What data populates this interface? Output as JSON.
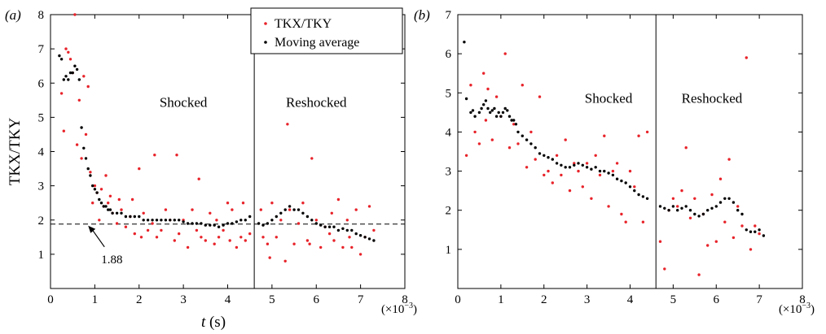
{
  "chart_data": [
    {
      "panel_label": "(a)",
      "type": "scatter",
      "xlabel": "t (s)",
      "xlabel_parts": {
        "var": "t",
        "unit": "(s)"
      },
      "ylabel": "TKX/TKY",
      "x_multiplier": "(×10−3)",
      "x_multiplier_parts": {
        "prefix": "(×10",
        "exp": "−3",
        "suffix": ")"
      },
      "xlim": [
        0,
        8
      ],
      "ylim": [
        0,
        8
      ],
      "xticks": [
        0,
        1,
        2,
        3,
        4,
        5,
        6,
        7,
        8
      ],
      "yticks": [
        1,
        2,
        3,
        4,
        5,
        6,
        7,
        8
      ],
      "legend": {
        "position": "top-right",
        "entries": [
          "TKX/TKY",
          "Moving average"
        ]
      },
      "reference_line": {
        "y": 1.88,
        "style": "dashed",
        "annotation": "1.88",
        "arrow_target_x": 0.85
      },
      "divider_x": 4.6,
      "region_labels": [
        {
          "text": "Shocked",
          "x": 3.0,
          "y": 5.3
        },
        {
          "text": "Reshocked",
          "x": 6.0,
          "y": 5.3
        }
      ],
      "series": [
        {
          "name": "TKX/TKY",
          "color": "#e8232a",
          "x": [
            0.25,
            0.3,
            0.35,
            0.4,
            0.45,
            0.5,
            0.55,
            0.6,
            0.65,
            0.7,
            0.75,
            0.8,
            0.85,
            0.9,
            0.95,
            1.0,
            1.05,
            1.1,
            1.15,
            1.2,
            1.25,
            1.3,
            1.35,
            1.4,
            1.5,
            1.55,
            1.6,
            1.7,
            1.8,
            1.85,
            1.9,
            2.0,
            2.05,
            2.1,
            2.2,
            2.3,
            2.35,
            2.4,
            2.5,
            2.6,
            2.7,
            2.8,
            2.85,
            2.9,
            3.0,
            3.1,
            3.2,
            3.3,
            3.35,
            3.4,
            3.5,
            3.6,
            3.7,
            3.75,
            3.8,
            3.9,
            4.0,
            4.05,
            4.1,
            4.2,
            4.3,
            4.35,
            4.4,
            4.5,
            4.75,
            4.8,
            4.9,
            4.95,
            5.0,
            5.1,
            5.2,
            5.3,
            5.35,
            5.4,
            5.5,
            5.6,
            5.7,
            5.8,
            5.85,
            5.9,
            6.0,
            6.1,
            6.2,
            6.3,
            6.35,
            6.4,
            6.5,
            6.6,
            6.7,
            6.75,
            6.8,
            6.9,
            7.0,
            7.1,
            7.2,
            7.3
          ],
          "y": [
            5.7,
            4.6,
            7.0,
            6.9,
            6.7,
            6.3,
            8.0,
            4.2,
            5.5,
            3.8,
            6.2,
            4.5,
            5.9,
            3.4,
            2.5,
            3.0,
            2.8,
            2.0,
            2.9,
            2.4,
            3.3,
            2.5,
            2.7,
            2.2,
            1.9,
            2.6,
            2.3,
            1.8,
            2.1,
            2.6,
            1.6,
            3.5,
            1.5,
            2.2,
            1.7,
            1.9,
            3.9,
            1.5,
            1.7,
            2.3,
            2.0,
            1.4,
            3.9,
            1.6,
            2.0,
            1.2,
            2.3,
            1.7,
            3.2,
            1.5,
            1.4,
            2.2,
            1.3,
            2.0,
            1.5,
            1.7,
            2.5,
            1.4,
            2.3,
            1.2,
            1.5,
            2.5,
            1.4,
            1.6,
            2.3,
            1.5,
            1.3,
            0.9,
            2.5,
            1.5,
            2.0,
            0.8,
            4.8,
            2.3,
            1.3,
            1.9,
            2.5,
            1.4,
            1.3,
            3.8,
            2.0,
            1.2,
            1.8,
            1.6,
            2.2,
            1.4,
            2.6,
            1.2,
            2.0,
            1.5,
            1.2,
            2.3,
            1.0,
            1.5,
            2.4,
            1.7
          ]
        },
        {
          "name": "Moving average",
          "color": "#000000",
          "x": [
            0.2,
            0.25,
            0.3,
            0.35,
            0.4,
            0.45,
            0.5,
            0.55,
            0.6,
            0.65,
            0.7,
            0.75,
            0.8,
            0.85,
            0.9,
            0.95,
            1.0,
            1.05,
            1.1,
            1.15,
            1.2,
            1.25,
            1.3,
            1.35,
            1.4,
            1.5,
            1.6,
            1.7,
            1.8,
            1.9,
            2.0,
            2.1,
            2.2,
            2.3,
            2.4,
            2.5,
            2.6,
            2.7,
            2.8,
            2.9,
            3.0,
            3.1,
            3.2,
            3.3,
            3.4,
            3.5,
            3.6,
            3.7,
            3.8,
            3.9,
            4.0,
            4.1,
            4.2,
            4.3,
            4.4,
            4.5,
            4.7,
            4.8,
            4.9,
            5.0,
            5.1,
            5.2,
            5.3,
            5.4,
            5.5,
            5.6,
            5.7,
            5.8,
            5.9,
            6.0,
            6.1,
            6.2,
            6.3,
            6.4,
            6.5,
            6.6,
            6.7,
            6.8,
            6.9,
            7.0,
            7.1,
            7.2,
            7.3
          ],
          "y": [
            6.8,
            6.7,
            6.1,
            6.2,
            6.1,
            6.3,
            6.3,
            6.5,
            6.4,
            6.1,
            4.7,
            4.1,
            3.8,
            3.5,
            3.3,
            3.0,
            2.9,
            2.8,
            2.6,
            2.5,
            2.4,
            2.4,
            2.3,
            2.3,
            2.2,
            2.2,
            2.2,
            2.1,
            2.1,
            2.1,
            2.1,
            2.0,
            2.0,
            2.0,
            2.0,
            2.0,
            2.0,
            2.0,
            2.0,
            2.0,
            1.95,
            1.9,
            1.9,
            1.9,
            1.9,
            1.85,
            1.85,
            1.85,
            1.8,
            1.85,
            1.9,
            1.9,
            1.95,
            2.0,
            2.0,
            2.1,
            1.9,
            1.85,
            1.9,
            2.0,
            2.1,
            2.2,
            2.3,
            2.4,
            2.3,
            2.3,
            2.2,
            2.1,
            2.0,
            1.9,
            1.85,
            1.8,
            1.8,
            1.8,
            1.7,
            1.75,
            1.7,
            1.7,
            1.6,
            1.55,
            1.5,
            1.45,
            1.4
          ]
        }
      ]
    },
    {
      "panel_label": "(b)",
      "type": "scatter",
      "xlabel": "",
      "ylabel": "",
      "x_multiplier": "(×10−3)",
      "x_multiplier_parts": {
        "prefix": "(×10",
        "exp": "−3",
        "suffix": ")"
      },
      "xlim": [
        0,
        8
      ],
      "ylim": [
        0,
        7
      ],
      "xticks": [
        0,
        1,
        2,
        3,
        4,
        5,
        6,
        7,
        8
      ],
      "yticks": [
        1,
        2,
        3,
        4,
        5,
        6,
        7
      ],
      "divider_x": 4.6,
      "region_labels": [
        {
          "text": "Shocked",
          "x": 3.5,
          "y": 4.75
        },
        {
          "text": "Reshocked",
          "x": 5.9,
          "y": 4.75
        }
      ],
      "series": [
        {
          "name": "TKX/TKY",
          "color": "#e8232a",
          "x": [
            0.2,
            0.3,
            0.4,
            0.5,
            0.6,
            0.65,
            0.7,
            0.8,
            0.9,
            1.0,
            1.1,
            1.2,
            1.3,
            1.4,
            1.5,
            1.6,
            1.7,
            1.8,
            1.9,
            2.0,
            2.1,
            2.2,
            2.3,
            2.4,
            2.5,
            2.6,
            2.7,
            2.8,
            2.9,
            3.0,
            3.1,
            3.2,
            3.3,
            3.4,
            3.5,
            3.6,
            3.7,
            3.8,
            3.9,
            4.0,
            4.1,
            4.2,
            4.3,
            4.4,
            4.7,
            4.8,
            4.9,
            5.0,
            5.1,
            5.2,
            5.3,
            5.4,
            5.5,
            5.6,
            5.7,
            5.8,
            5.9,
            6.0,
            6.1,
            6.2,
            6.3,
            6.4,
            6.5,
            6.6,
            6.7,
            6.8,
            6.9,
            7.0
          ],
          "y": [
            3.4,
            5.2,
            4.0,
            3.7,
            5.5,
            4.3,
            5.1,
            3.8,
            4.9,
            4.4,
            6.0,
            3.6,
            4.2,
            3.7,
            5.2,
            3.1,
            4.0,
            3.3,
            4.9,
            2.9,
            3.0,
            2.7,
            3.4,
            2.9,
            3.8,
            2.5,
            3.2,
            3.0,
            2.6,
            3.2,
            2.3,
            3.4,
            2.9,
            3.9,
            2.1,
            3.0,
            3.2,
            1.9,
            1.7,
            3.0,
            2.6,
            3.9,
            1.7,
            4.0,
            1.2,
            0.5,
            2.0,
            2.3,
            2.1,
            2.5,
            3.6,
            1.8,
            2.3,
            0.35,
            1.9,
            1.1,
            2.4,
            1.2,
            2.8,
            1.7,
            3.3,
            1.3,
            2.1,
            1.6,
            5.9,
            1.0,
            1.6,
            1.4
          ]
        },
        {
          "name": "Moving average",
          "color": "#000000",
          "x": [
            0.15,
            0.2,
            0.3,
            0.35,
            0.4,
            0.5,
            0.55,
            0.6,
            0.65,
            0.7,
            0.75,
            0.8,
            0.85,
            0.9,
            0.95,
            1.0,
            1.05,
            1.1,
            1.15,
            1.2,
            1.25,
            1.3,
            1.35,
            1.4,
            1.5,
            1.6,
            1.7,
            1.8,
            1.9,
            2.0,
            2.1,
            2.2,
            2.3,
            2.4,
            2.5,
            2.6,
            2.7,
            2.8,
            2.9,
            3.0,
            3.1,
            3.2,
            3.3,
            3.4,
            3.5,
            3.6,
            3.7,
            3.8,
            3.9,
            4.0,
            4.1,
            4.2,
            4.3,
            4.4,
            4.7,
            4.8,
            4.9,
            5.0,
            5.1,
            5.2,
            5.3,
            5.4,
            5.5,
            5.6,
            5.7,
            5.8,
            5.9,
            6.0,
            6.1,
            6.2,
            6.3,
            6.4,
            6.5,
            6.6,
            6.7,
            6.8,
            6.9,
            7.0,
            7.1
          ],
          "y": [
            6.3,
            4.85,
            4.5,
            4.55,
            4.4,
            4.5,
            4.6,
            4.7,
            4.8,
            4.6,
            4.5,
            4.55,
            4.6,
            4.4,
            4.5,
            4.4,
            4.5,
            4.6,
            4.55,
            4.4,
            4.3,
            4.3,
            4.2,
            4.0,
            3.9,
            3.8,
            3.7,
            3.6,
            3.45,
            3.4,
            3.35,
            3.3,
            3.2,
            3.15,
            3.1,
            3.1,
            3.15,
            3.2,
            3.15,
            3.1,
            3.05,
            3.1,
            3.0,
            3.0,
            2.95,
            2.9,
            2.8,
            2.75,
            2.7,
            2.6,
            2.5,
            2.4,
            2.35,
            2.3,
            2.1,
            2.05,
            2.0,
            2.1,
            2.0,
            2.05,
            2.1,
            2.0,
            1.9,
            1.85,
            1.9,
            2.0,
            2.05,
            2.1,
            2.2,
            2.3,
            2.3,
            2.2,
            2.0,
            1.9,
            1.5,
            1.45,
            1.45,
            1.5,
            1.35
          ]
        }
      ]
    }
  ]
}
